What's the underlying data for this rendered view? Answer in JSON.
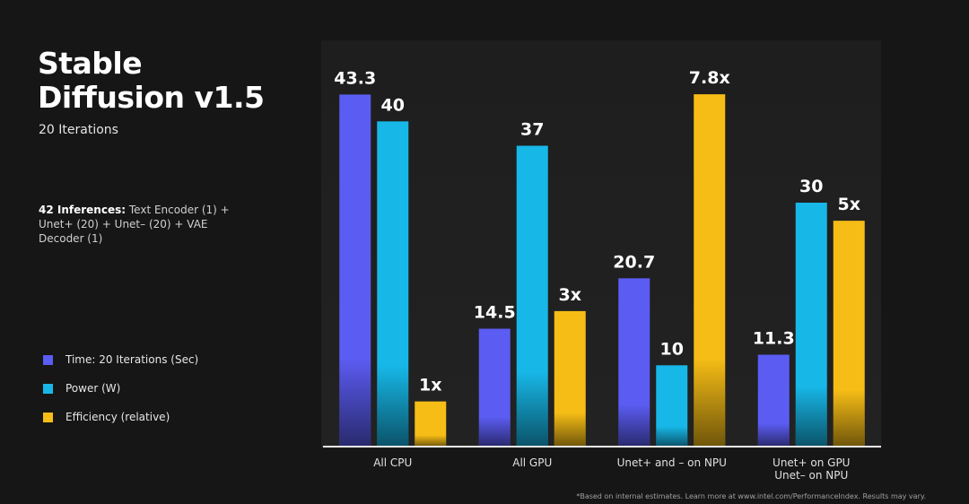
{
  "chart_data": {
    "type": "bar",
    "title": "Stable Diffusion v1.5",
    "subtitle": "20 Iterations",
    "note_label": "42 Inferences:",
    "note": "Text Encoder (1) + Unet+ (20) + Unet– (20) + VAE Decoder (1)",
    "footnote": "*Based on internal estimates. Learn more at www.intel.com/PerformanceIndex. Results may vary.",
    "categories": [
      "All CPU",
      "All GPU",
      "Unet+ and – on NPU",
      "Unet+ on GPU\nUnet– on NPU"
    ],
    "series": [
      {
        "name": "Time: 20 Iterations (Sec)",
        "color": "#5b5cf2",
        "values": [
          43.3,
          14.5,
          20.7,
          11.3
        ]
      },
      {
        "name": "Power (W)",
        "color": "#17b8e8",
        "values": [
          40,
          37,
          10,
          30
        ]
      },
      {
        "name": "Efficiency (relative)",
        "color": "#f6bd16",
        "axis": "y2",
        "values": [
          1,
          3,
          7.8,
          5
        ],
        "value_labels": [
          "1x",
          "3x",
          "7.8x",
          "5x"
        ]
      }
    ],
    "ylim": [
      0,
      45
    ],
    "y2lim": [
      0,
      8.1
    ]
  }
}
